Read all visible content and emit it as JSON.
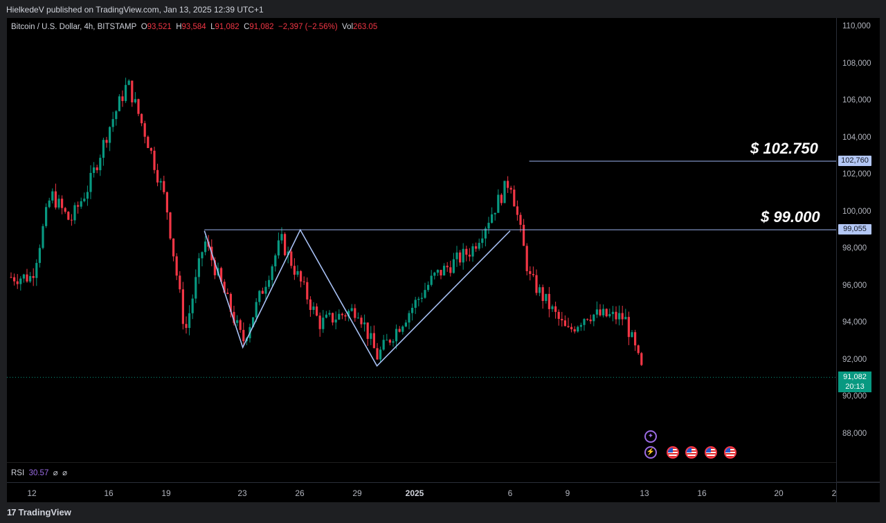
{
  "header": {
    "publish_line": "HielkedeV published on TradingView.com, Jan 13, 2025 12:39 UTC+1"
  },
  "symbol_legend": {
    "name": "Bitcoin / U.S. Dollar, 4h, BITSTAMP",
    "open_label": "O",
    "open": "93,521",
    "high_label": "H",
    "high": "93,584",
    "low_label": "L",
    "low": "91,082",
    "close_label": "C",
    "close": "91,082",
    "change": "−2,397 (−2.56%)",
    "vol_label": "Vol",
    "volume": "263.05"
  },
  "price_axis": [
    "110,000",
    "108,000",
    "106,000",
    "104,000",
    "102,000",
    "100,000",
    "98,000",
    "96,000",
    "94,000",
    "92,000",
    "90,000",
    "88,000"
  ],
  "price_badges": {
    "upper": "102,760",
    "lower": "99,055",
    "last_price": "91,082",
    "countdown": "20:13"
  },
  "annotations": {
    "upper_level": "$ 102.750",
    "lower_level": "$ 99.000"
  },
  "time_axis": [
    {
      "label": "12",
      "bold": false
    },
    {
      "label": "16",
      "bold": false
    },
    {
      "label": "19",
      "bold": false
    },
    {
      "label": "23",
      "bold": false
    },
    {
      "label": "26",
      "bold": false
    },
    {
      "label": "29",
      "bold": false
    },
    {
      "label": "2025",
      "bold": true
    },
    {
      "label": "6",
      "bold": false
    },
    {
      "label": "9",
      "bold": false
    },
    {
      "label": "13",
      "bold": false
    },
    {
      "label": "16",
      "bold": false
    },
    {
      "label": "20",
      "bold": false
    },
    {
      "label": "2",
      "bold": false
    }
  ],
  "rsi": {
    "label": "RSI",
    "value": "30.57",
    "glyph1": "⌀",
    "glyph2": "⌀"
  },
  "footer": {
    "brand": "TradingView",
    "brand_mark": "17"
  },
  "colors": {
    "up": "#089981",
    "down": "#f23645",
    "level_line": "#9db4f0",
    "pattern_line": "#a8c1f5"
  },
  "chart_data": {
    "type": "candlestick",
    "interval": "4h",
    "ylim": [
      86500,
      110500
    ],
    "horizontal_levels": [
      102760,
      99055
    ],
    "pattern_points": [
      {
        "date": "Dec 21",
        "price": 99000
      },
      {
        "date": "Dec 23",
        "price": 92700
      },
      {
        "date": "Dec 26",
        "price": 99050
      },
      {
        "date": "Dec 30",
        "price": 91700
      },
      {
        "date": "Jan 6",
        "price": 99000
      }
    ],
    "ohlc_path": [
      {
        "date": "Dec 12",
        "price": 96500
      },
      {
        "date": "Dec 13",
        "price": 101000
      },
      {
        "date": "Dec 14",
        "price": 99500
      },
      {
        "date": "Dec 15",
        "price": 101500
      },
      {
        "date": "Dec 16",
        "price": 104500
      },
      {
        "date": "Dec 17",
        "price": 107000
      },
      {
        "date": "Dec 18",
        "price": 104000
      },
      {
        "date": "Dec 19",
        "price": 100500
      },
      {
        "date": "Dec 20",
        "price": 93500
      },
      {
        "date": "Dec 21",
        "price": 98500
      },
      {
        "date": "Dec 23",
        "price": 93000
      },
      {
        "date": "Dec 25",
        "price": 98500
      },
      {
        "date": "Dec 27",
        "price": 94000
      },
      {
        "date": "Dec 29",
        "price": 94800
      },
      {
        "date": "Dec 30",
        "price": 92200
      },
      {
        "date": "Jan 2",
        "price": 96500
      },
      {
        "date": "Jan 4",
        "price": 98000
      },
      {
        "date": "Jan 6",
        "price": 101800
      },
      {
        "date": "Jan 7",
        "price": 96500
      },
      {
        "date": "Jan 9",
        "price": 93500
      },
      {
        "date": "Jan 10",
        "price": 94500
      },
      {
        "date": "Jan 12",
        "price": 94300
      },
      {
        "date": "Jan 13",
        "price": 91082
      }
    ]
  }
}
